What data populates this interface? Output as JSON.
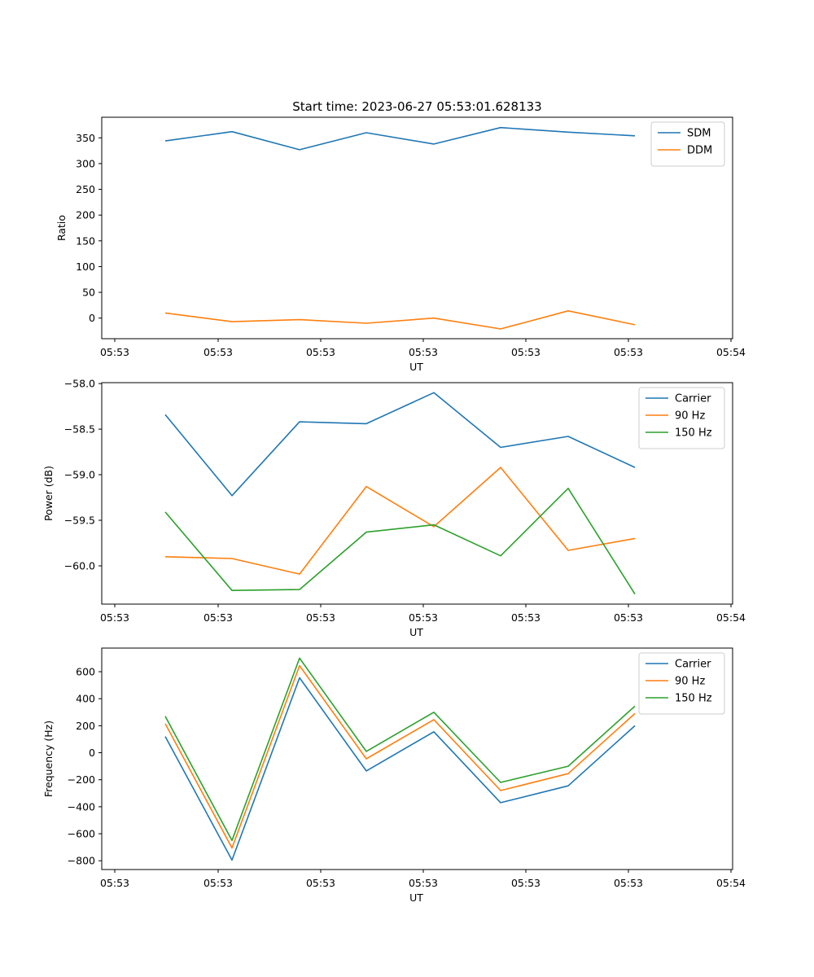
{
  "figure_title": "Start time: 2023-06-27 05:53:01.628133",
  "colors": {
    "blue": "#1f77b4",
    "orange": "#ff7f0e",
    "green": "#2ca02c"
  },
  "chart_data": [
    {
      "type": "line",
      "title": "Start time: 2023-06-27 05:53:01.628133",
      "xlabel": "UT",
      "ylabel": "Ratio",
      "x_tick_labels": [
        "05:53",
        "05:53",
        "05:53",
        "05:53",
        "05:53",
        "05:53",
        "05:54"
      ],
      "ylim": [
        -40,
        390
      ],
      "yticks": [
        0,
        50,
        100,
        150,
        200,
        250,
        300,
        350
      ],
      "legend_position": "top-right",
      "series": [
        {
          "name": "SDM",
          "color": "#1f77b4",
          "values": [
            344,
            362,
            327,
            360,
            338,
            370,
            361,
            354
          ]
        },
        {
          "name": "DDM",
          "color": "#ff7f0e",
          "values": [
            10,
            -7,
            -3,
            -10,
            0,
            -21,
            14,
            -13
          ]
        }
      ]
    },
    {
      "type": "line",
      "xlabel": "UT",
      "ylabel": "Power (dB)",
      "x_tick_labels": [
        "05:53",
        "05:53",
        "05:53",
        "05:53",
        "05:53",
        "05:53",
        "05:54"
      ],
      "ylim": [
        -60.42,
        -57.99
      ],
      "yticks": [
        -60.0,
        -59.5,
        -59.0,
        -58.5,
        -58.0
      ],
      "ytick_labels": [
        "−60.0",
        "−59.5",
        "−59.0",
        "−58.5",
        "−58.0"
      ],
      "legend_position": "top-right",
      "series": [
        {
          "name": "Carrier",
          "color": "#1f77b4",
          "values": [
            -58.34,
            -59.23,
            -58.42,
            -58.44,
            -58.1,
            -58.7,
            -58.58,
            -58.92
          ]
        },
        {
          "name": "90 Hz",
          "color": "#ff7f0e",
          "values": [
            -59.9,
            -59.92,
            -60.09,
            -59.13,
            -59.57,
            -58.92,
            -59.83,
            -59.7
          ]
        },
        {
          "name": "150 Hz",
          "color": "#2ca02c",
          "values": [
            -59.41,
            -60.27,
            -60.26,
            -59.63,
            -59.55,
            -59.89,
            -59.15,
            -60.31
          ]
        }
      ]
    },
    {
      "type": "line",
      "xlabel": "UT",
      "ylabel": "Frequency (Hz)",
      "x_tick_labels": [
        "05:53",
        "05:53",
        "05:53",
        "05:53",
        "05:53",
        "05:53",
        "05:54"
      ],
      "ylim": [
        -865,
        775
      ],
      "yticks": [
        -800,
        -600,
        -400,
        -200,
        0,
        200,
        400,
        600
      ],
      "ytick_labels": [
        "−800",
        "−600",
        "−400",
        "−200",
        "0",
        "200",
        "400",
        "600"
      ],
      "legend_position": "top-right",
      "series": [
        {
          "name": "Carrier",
          "color": "#1f77b4",
          "values": [
            120,
            -795,
            555,
            -135,
            155,
            -370,
            -245,
            200
          ]
        },
        {
          "name": "90 Hz",
          "color": "#ff7f0e",
          "values": [
            215,
            -705,
            645,
            -45,
            245,
            -280,
            -155,
            290
          ]
        },
        {
          "name": "150 Hz",
          "color": "#2ca02c",
          "values": [
            270,
            -650,
            700,
            10,
            300,
            -220,
            -100,
            345
          ]
        }
      ]
    }
  ]
}
